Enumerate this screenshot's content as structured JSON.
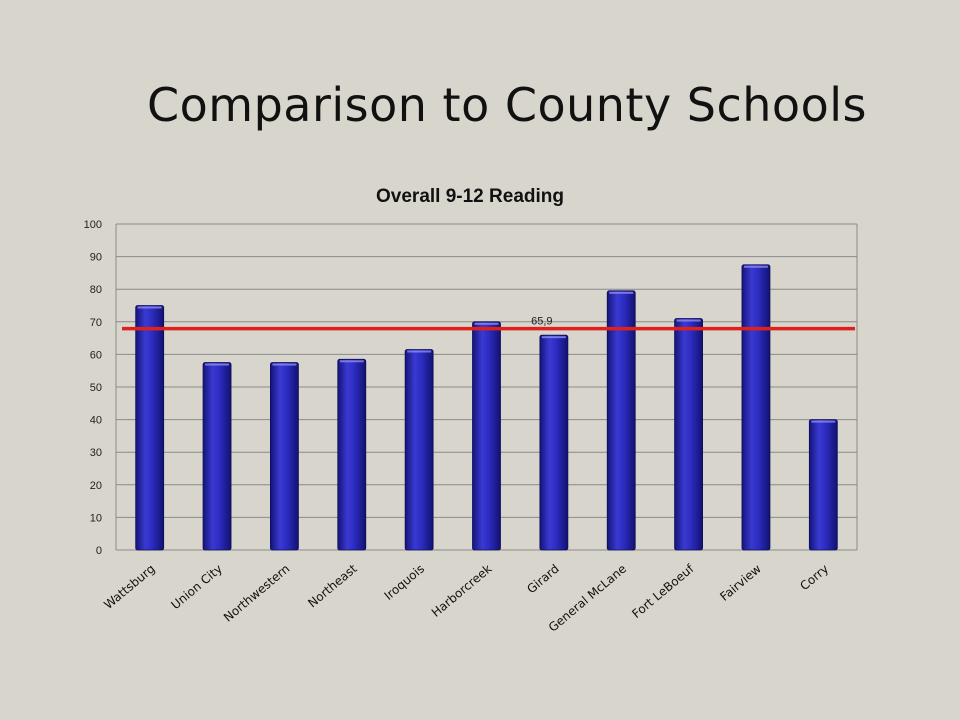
{
  "slide": {
    "title": "Comparison to County Schools"
  },
  "chart_data": {
    "type": "bar",
    "title": "Overall 9-12 Reading",
    "xlabel": "",
    "ylabel": "",
    "ylim": [
      0,
      100
    ],
    "yticks": [
      0,
      10,
      20,
      30,
      40,
      50,
      60,
      70,
      80,
      90,
      100
    ],
    "grid": true,
    "categories": [
      "Wattsburg",
      "Union City",
      "Northwestern",
      "Northeast",
      "Iroquois",
      "Harborcreek",
      "Girard",
      "General McLane",
      "Fort LeBoeuf",
      "Fairview",
      "Corry"
    ],
    "values": [
      75,
      57.5,
      57.5,
      58.5,
      61.5,
      70,
      65.9,
      79.5,
      71,
      87.5,
      40
    ],
    "reference_line": {
      "value": 67.9,
      "color": "#e0201c"
    },
    "data_labels": [
      {
        "category": "Girard",
        "text": "65,9"
      }
    ],
    "bar_color": "#2a2ab4"
  }
}
